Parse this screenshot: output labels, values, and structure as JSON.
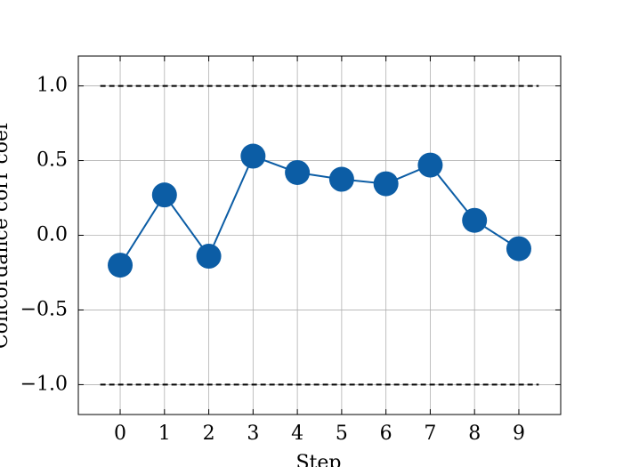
{
  "chart_data": {
    "type": "line",
    "x_label": "Step",
    "y_label": "Concordance corr coef",
    "x": [
      0,
      1,
      2,
      3,
      4,
      5,
      6,
      7,
      8,
      9
    ],
    "series": [
      {
        "color": "#0C5DA5",
        "values": [
          -0.2,
          0.27,
          -0.14,
          0.53,
          0.42,
          0.375,
          0.345,
          0.47,
          0.1,
          -0.09
        ]
      }
    ],
    "hlines": [
      {
        "y": 1.0,
        "xmin": -0.45,
        "xmax": 9.45,
        "color": "#000000"
      },
      {
        "y": -1.0,
        "xmin": -0.45,
        "xmax": 9.45,
        "color": "#000000"
      }
    ],
    "xlim": [
      -0.945,
      9.945
    ],
    "ylim": [
      -1.2,
      1.2
    ],
    "xticks": [
      0,
      1,
      2,
      3,
      4,
      5,
      6,
      7,
      8,
      9
    ],
    "yticks": [
      {
        "value": -1.0,
        "label": "−1.0"
      },
      {
        "value": -0.5,
        "label": "−0.5"
      },
      {
        "value": 0.0,
        "label": "0.0"
      },
      {
        "value": 0.5,
        "label": "0.5"
      },
      {
        "value": 1.0,
        "label": "1.0"
      }
    ],
    "grid": true
  }
}
